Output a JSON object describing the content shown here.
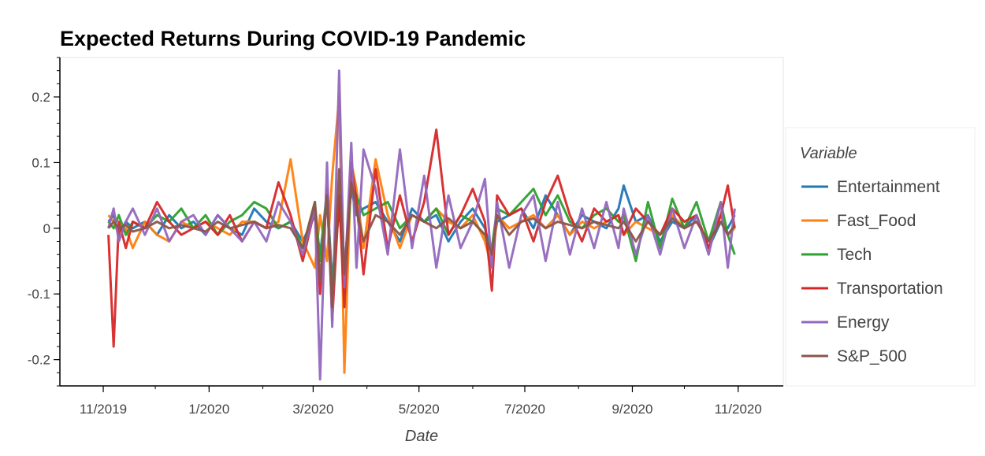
{
  "chart_data": {
    "type": "line",
    "title": "Expected Returns During COVID-19 Pandemic",
    "xlabel": "Date",
    "ylabel": "",
    "legend_title": "Variable",
    "legend_position": "right",
    "x_range": [
      "2019-10-07",
      "2020-11-27"
    ],
    "ylim": [
      -0.24,
      0.26
    ],
    "x_ticks": [
      {
        "date": "2019-11-01",
        "label": "11/2019"
      },
      {
        "date": "2020-01-01",
        "label": "1/2020"
      },
      {
        "date": "2020-03-01",
        "label": "3/2020"
      },
      {
        "date": "2020-05-01",
        "label": "5/2020"
      },
      {
        "date": "2020-07-01",
        "label": "7/2020"
      },
      {
        "date": "2020-09-01",
        "label": "9/2020"
      },
      {
        "date": "2020-11-01",
        "label": "11/2020"
      }
    ],
    "y_ticks": [
      {
        "value": 0.2,
        "label": "0.2"
      },
      {
        "value": 0.1,
        "label": "0.1"
      },
      {
        "value": 0,
        "label": "0"
      },
      {
        "value": -0.1,
        "label": "-0.1"
      },
      {
        "value": -0.2,
        "label": "-0.2"
      }
    ],
    "dates": [
      "2019-11-04",
      "2019-11-07",
      "2019-11-10",
      "2019-11-14",
      "2019-11-18",
      "2019-11-25",
      "2019-12-02",
      "2019-12-09",
      "2019-12-16",
      "2019-12-23",
      "2019-12-30",
      "2020-01-06",
      "2020-01-13",
      "2020-01-20",
      "2020-01-27",
      "2020-02-03",
      "2020-02-10",
      "2020-02-17",
      "2020-02-24",
      "2020-03-02",
      "2020-03-05",
      "2020-03-09",
      "2020-03-12",
      "2020-03-16",
      "2020-03-19",
      "2020-03-23",
      "2020-03-26",
      "2020-03-30",
      "2020-04-06",
      "2020-04-13",
      "2020-04-20",
      "2020-04-27",
      "2020-05-04",
      "2020-05-11",
      "2020-05-18",
      "2020-05-25",
      "2020-06-01",
      "2020-06-08",
      "2020-06-12",
      "2020-06-15",
      "2020-06-22",
      "2020-06-29",
      "2020-07-06",
      "2020-07-13",
      "2020-07-20",
      "2020-07-27",
      "2020-08-03",
      "2020-08-10",
      "2020-08-17",
      "2020-08-24",
      "2020-08-27",
      "2020-09-03",
      "2020-09-10",
      "2020-09-17",
      "2020-09-24",
      "2020-10-01",
      "2020-10-08",
      "2020-10-15",
      "2020-10-22",
      "2020-10-26",
      "2020-10-30"
    ],
    "series": [
      {
        "name": "Entertainment",
        "color": "#1f77b4",
        "values": [
          0.01,
          0.02,
          -0.01,
          0.01,
          0.0,
          0.01,
          -0.01,
          0.02,
          0.0,
          0.01,
          -0.01,
          0.02,
          0.0,
          -0.01,
          0.03,
          0.01,
          0.0,
          0.01,
          -0.02,
          0.02,
          -0.04,
          0.05,
          -0.08,
          0.03,
          -0.06,
          0.06,
          0.02,
          0.03,
          0.04,
          0.01,
          -0.02,
          0.03,
          0.01,
          0.02,
          -0.02,
          0.01,
          0.03,
          0.0,
          -0.04,
          0.01,
          0.02,
          0.03,
          0.0,
          0.05,
          0.02,
          -0.01,
          0.02,
          0.01,
          0.0,
          0.03,
          0.065,
          0.01,
          0.02,
          -0.02,
          0.01,
          0.0,
          0.02,
          -0.03,
          0.01,
          0.0,
          0.02
        ]
      },
      {
        "name": "Fast_Food",
        "color": "#ff7f0e",
        "values": [
          0.02,
          0.01,
          -0.01,
          0.0,
          -0.03,
          0.01,
          -0.01,
          -0.02,
          0.01,
          0.0,
          0.01,
          0.0,
          -0.01,
          0.01,
          0.01,
          0.0,
          0.01,
          0.105,
          -0.02,
          -0.06,
          0.02,
          -0.05,
          0.08,
          0.2,
          -0.22,
          0.1,
          0.06,
          -0.03,
          0.105,
          0.02,
          -0.03,
          0.02,
          0.01,
          0.03,
          0.01,
          0.0,
          0.02,
          -0.02,
          -0.06,
          0.02,
          0.0,
          0.01,
          0.02,
          0.0,
          0.02,
          -0.01,
          0.01,
          0.0,
          0.01,
          0.02,
          -0.01,
          0.01,
          0.0,
          -0.01,
          0.02,
          0.0,
          0.01,
          -0.02,
          0.02,
          -0.01,
          0.0
        ]
      },
      {
        "name": "Tech",
        "color": "#2ca02c",
        "values": [
          0.01,
          0.0,
          0.02,
          -0.01,
          0.01,
          0.0,
          0.02,
          0.01,
          0.03,
          0.0,
          0.02,
          -0.01,
          0.01,
          0.02,
          0.04,
          0.03,
          0.0,
          0.01,
          -0.03,
          0.04,
          -0.05,
          0.06,
          -0.09,
          0.05,
          -0.1,
          0.07,
          0.05,
          0.02,
          0.03,
          0.04,
          0.0,
          0.02,
          0.01,
          0.03,
          -0.01,
          0.02,
          0.01,
          -0.01,
          -0.03,
          0.03,
          0.02,
          0.04,
          0.06,
          0.02,
          0.05,
          0.01,
          0.0,
          0.02,
          0.03,
          0.01,
          0.02,
          -0.05,
          0.04,
          -0.03,
          0.045,
          0.0,
          0.04,
          -0.02,
          0.04,
          -0.01,
          -0.04
        ]
      },
      {
        "name": "Transportation",
        "color": "#d62728",
        "values": [
          -0.01,
          -0.18,
          0.01,
          -0.03,
          0.01,
          0.0,
          0.04,
          0.01,
          -0.01,
          0.0,
          0.01,
          -0.01,
          0.02,
          -0.02,
          0.01,
          0.0,
          0.07,
          0.02,
          -0.05,
          0.03,
          -0.1,
          0.06,
          -0.14,
          0.05,
          -0.12,
          0.1,
          0.04,
          -0.07,
          0.09,
          -0.03,
          0.05,
          -0.02,
          0.04,
          0.15,
          -0.01,
          0.02,
          0.06,
          0.01,
          -0.095,
          0.05,
          0.02,
          0.03,
          -0.02,
          0.04,
          0.08,
          0.02,
          -0.02,
          0.03,
          0.01,
          0.02,
          -0.01,
          0.03,
          0.01,
          -0.01,
          0.03,
          0.01,
          0.02,
          -0.03,
          0.02,
          0.065,
          0.0
        ]
      },
      {
        "name": "Energy",
        "color": "#9467bd",
        "values": [
          0.0,
          0.03,
          -0.02,
          0.01,
          0.03,
          -0.01,
          0.03,
          -0.02,
          0.01,
          0.02,
          -0.01,
          0.02,
          0.0,
          -0.02,
          0.01,
          -0.02,
          0.04,
          0.01,
          -0.04,
          0.03,
          -0.23,
          0.1,
          -0.15,
          0.24,
          -0.09,
          0.13,
          -0.06,
          0.12,
          0.06,
          -0.04,
          0.12,
          -0.03,
          0.08,
          -0.06,
          0.05,
          -0.03,
          0.01,
          0.075,
          -0.06,
          0.04,
          -0.06,
          0.02,
          0.05,
          -0.05,
          0.04,
          -0.04,
          0.03,
          -0.03,
          0.04,
          -0.03,
          0.03,
          -0.04,
          0.02,
          -0.04,
          0.03,
          -0.03,
          0.02,
          -0.04,
          0.04,
          -0.06,
          0.03
        ]
      },
      {
        "name": "S&P_500",
        "color": "#8c564b",
        "values": [
          0.0,
          0.01,
          0.0,
          0.005,
          -0.005,
          0.0,
          0.01,
          0.0,
          0.005,
          0.0,
          -0.005,
          0.01,
          0.0,
          0.005,
          0.01,
          0.0,
          0.005,
          0.0,
          -0.03,
          0.04,
          -0.08,
          0.05,
          -0.12,
          0.09,
          -0.07,
          0.07,
          0.03,
          -0.02,
          0.02,
          0.01,
          -0.01,
          0.02,
          0.01,
          0.0,
          0.015,
          0.0,
          0.01,
          -0.01,
          -0.04,
          0.02,
          -0.01,
          0.01,
          0.015,
          0.0,
          0.01,
          0.005,
          0.0,
          0.01,
          0.005,
          0.0,
          0.01,
          -0.02,
          0.01,
          -0.01,
          0.015,
          0.0,
          0.01,
          -0.02,
          0.01,
          -0.01,
          0.005
        ]
      }
    ]
  }
}
